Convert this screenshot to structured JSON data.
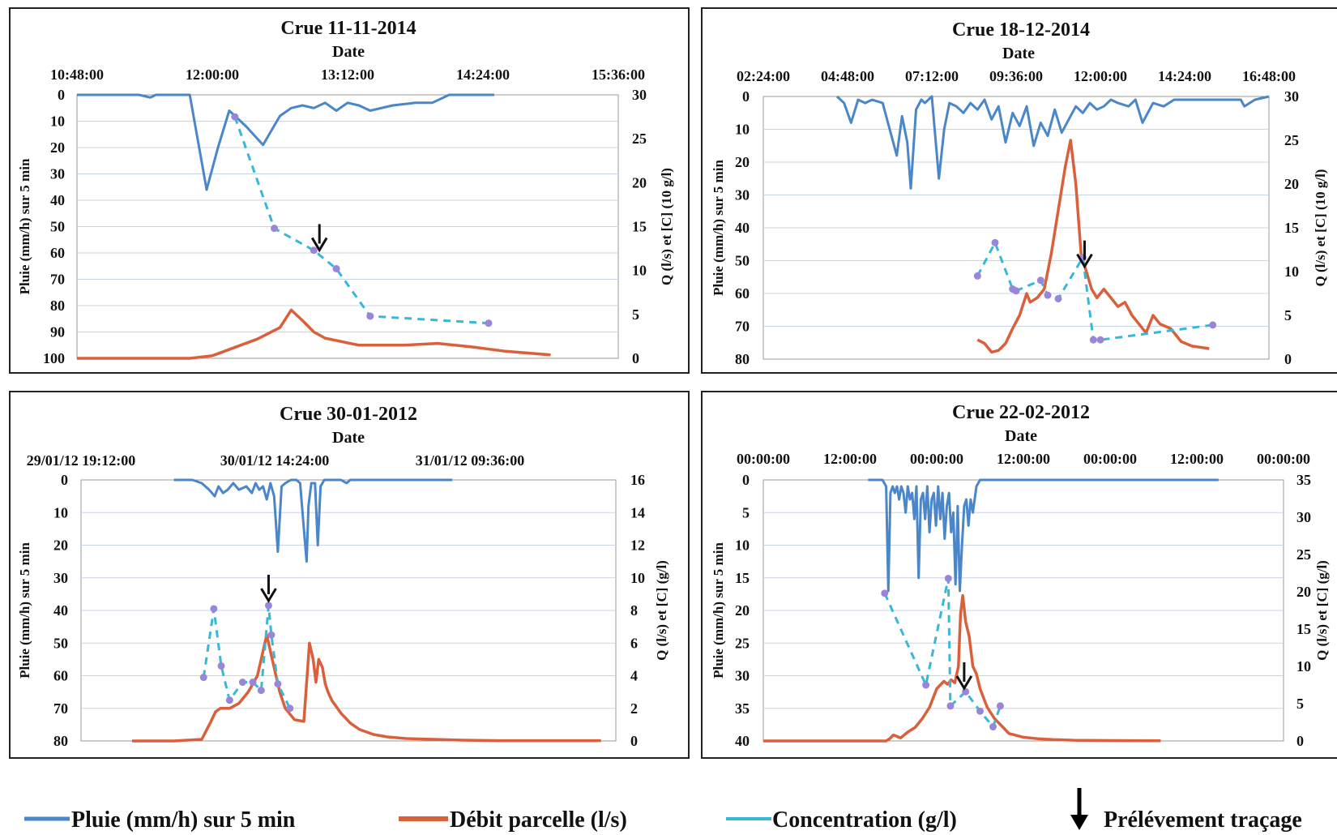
{
  "chart_data": [
    {
      "type": "line",
      "title": "Crue 11-11-2014",
      "xlabel": "Date",
      "ylabel_left": "Pluie (mm/h) sur 5 min",
      "ylabel_right": "Q (l/s) et [C] (10 g/l)",
      "x_ticks": [
        "10:48:00",
        "12:00:00",
        "13:12:00",
        "14:24:00",
        "15:36:00"
      ],
      "x_range_hours": [
        10.8,
        15.6
      ],
      "y_left_ticks": [
        "0",
        "10",
        "20",
        "30",
        "40",
        "50",
        "60",
        "70",
        "80",
        "90",
        "100"
      ],
      "y_left_range": [
        0,
        100
      ],
      "y_left_inverted": true,
      "y_right_ticks": [
        "0",
        "5",
        "10",
        "15",
        "20",
        "25",
        "30"
      ],
      "y_right_range": [
        0,
        30
      ],
      "series": [
        {
          "name": "Pluie (mm/h) sur 5 min",
          "axis": "left",
          "x": [
            10.8,
            11.35,
            11.45,
            11.5,
            11.55,
            11.8,
            11.95,
            12.05,
            12.15,
            12.3,
            12.45,
            12.6,
            12.7,
            12.8,
            12.9,
            13.0,
            13.1,
            13.2,
            13.3,
            13.4,
            13.6,
            13.8,
            13.95,
            14.1,
            14.5
          ],
          "y": [
            0,
            0,
            1,
            0,
            0,
            0,
            36,
            20,
            6,
            12,
            19,
            8,
            5,
            4,
            5,
            3,
            6,
            3,
            4,
            6,
            4,
            3,
            3,
            0,
            0
          ]
        },
        {
          "name": "Débit parcelle (l/s)",
          "axis": "right",
          "x": [
            10.8,
            11.4,
            11.8,
            12.0,
            12.4,
            12.6,
            12.7,
            12.8,
            12.9,
            13.0,
            13.3,
            13.7,
            14.0,
            14.3,
            14.6,
            15.0
          ],
          "y": [
            0,
            0,
            0,
            0.3,
            2.2,
            3.5,
            5.5,
            4.3,
            3.0,
            2.3,
            1.5,
            1.5,
            1.7,
            1.3,
            0.8,
            0.4
          ]
        },
        {
          "name": "Concentration (g/l)",
          "axis": "right",
          "x": [
            12.2,
            12.55,
            12.9,
            13.1,
            13.4,
            14.45
          ],
          "y": [
            27.5,
            14.8,
            12.3,
            10.2,
            4.8,
            4.0
          ]
        }
      ],
      "sampling_arrow_x": 12.95
    },
    {
      "type": "line",
      "title": "Crue 18-12-2014",
      "xlabel": "Date",
      "ylabel_left": "Pluie (mm/h) sur 5 min",
      "ylabel_right": "Q (l/s) et [C] (10 g/l)",
      "x_ticks": [
        "02:24:00",
        "04:48:00",
        "07:12:00",
        "09:36:00",
        "12:00:00",
        "14:24:00",
        "16:48:00"
      ],
      "x_range_hours": [
        2.4,
        16.8
      ],
      "y_left_ticks": [
        "0",
        "10",
        "20",
        "30",
        "40",
        "50",
        "60",
        "70",
        "80"
      ],
      "y_left_range": [
        0,
        80
      ],
      "y_left_inverted": true,
      "y_right_ticks": [
        "0",
        "5",
        "10",
        "15",
        "20",
        "25",
        "30"
      ],
      "y_right_range": [
        0,
        30
      ],
      "series": [
        {
          "name": "Pluie (mm/h) sur 5 min",
          "axis": "left",
          "x": [
            4.5,
            4.7,
            4.9,
            5.1,
            5.3,
            5.5,
            5.8,
            6.0,
            6.2,
            6.35,
            6.5,
            6.6,
            6.75,
            6.9,
            7.0,
            7.2,
            7.4,
            7.55,
            7.7,
            7.9,
            8.1,
            8.3,
            8.5,
            8.7,
            8.9,
            9.1,
            9.3,
            9.5,
            9.7,
            9.9,
            10.1,
            10.3,
            10.5,
            10.7,
            10.9,
            11.1,
            11.3,
            11.5,
            11.7,
            11.9,
            12.1,
            12.3,
            12.5,
            12.8,
            13.0,
            13.2,
            13.5,
            13.8,
            14.1,
            14.5,
            15.0,
            15.5,
            16.0,
            16.1,
            16.4,
            16.8
          ],
          "y": [
            0,
            2,
            8,
            1,
            2,
            1,
            2,
            10,
            18,
            6,
            14,
            28,
            4,
            1,
            2,
            0,
            25,
            10,
            2,
            3,
            5,
            2,
            4,
            1,
            7,
            3,
            14,
            5,
            9,
            3,
            15,
            8,
            12,
            4,
            11,
            7,
            3,
            5,
            2,
            4,
            3,
            1,
            2,
            3,
            1,
            8,
            2,
            3,
            1,
            1,
            1,
            1,
            1,
            3,
            1,
            0
          ]
        },
        {
          "name": "Débit parcelle (l/s)",
          "axis": "right",
          "x": [
            8.5,
            8.7,
            8.9,
            9.1,
            9.3,
            9.5,
            9.7,
            9.9,
            10.0,
            10.2,
            10.4,
            10.6,
            10.8,
            11.0,
            11.15,
            11.3,
            11.45,
            11.6,
            11.75,
            11.9,
            12.1,
            12.3,
            12.5,
            12.7,
            12.9,
            13.1,
            13.3,
            13.5,
            13.7,
            14.0,
            14.3,
            14.6,
            15.1
          ],
          "y": [
            2.2,
            1.8,
            0.8,
            1.0,
            1.8,
            3.5,
            5.0,
            7.5,
            6.5,
            7.0,
            8.0,
            12.0,
            17.0,
            22.0,
            25.0,
            20.0,
            12.0,
            10.0,
            8.0,
            7.0,
            8.0,
            7.0,
            6.0,
            6.5,
            5.0,
            4.0,
            3.0,
            5.0,
            4.0,
            3.5,
            2.0,
            1.5,
            1.2
          ]
        },
        {
          "name": "Concentration (g/l)",
          "axis": "right",
          "x": [
            8.5,
            9.0,
            9.5,
            9.6,
            10.3,
            10.5,
            10.8,
            11.5,
            11.8,
            12.0,
            15.2
          ],
          "y": [
            9.5,
            13.3,
            8.0,
            7.8,
            9.0,
            7.3,
            6.9,
            11.6,
            2.2,
            2.2,
            3.9
          ]
        }
      ],
      "sampling_arrow_x": 11.55
    },
    {
      "type": "line",
      "title": "Crue 30-01-2012",
      "xlabel": "Date",
      "ylabel_left": "Pluie (mm/h) sur 5 min",
      "ylabel_right": "Q (l/s) et [C] (g/l)",
      "x_ticks": [
        "29/01/12 19:12:00",
        "30/01/12 14:24:00",
        "31/01/12 09:36:00"
      ],
      "x_range_hours": [
        0,
        57.6
      ],
      "y_left_ticks": [
        "0",
        "10",
        "20",
        "30",
        "40",
        "50",
        "60",
        "70",
        "80"
      ],
      "y_left_range": [
        0,
        80
      ],
      "y_left_inverted": true,
      "y_right_ticks": [
        "0",
        "2",
        "4",
        "6",
        "8",
        "10",
        "12",
        "14",
        "16"
      ],
      "y_right_range": [
        0,
        16
      ],
      "series": [
        {
          "name": "Pluie (mm/h) sur 5 min",
          "axis": "left",
          "x": [
            10.0,
            12.0,
            13.0,
            13.8,
            14.4,
            14.8,
            15.3,
            15.8,
            16.4,
            17.0,
            17.8,
            18.4,
            18.8,
            19.2,
            19.6,
            20.0,
            20.4,
            20.8,
            21.2,
            21.6,
            22.0,
            22.6,
            23.2,
            23.6,
            24.0,
            24.3,
            24.5,
            24.8,
            25.2,
            25.5,
            25.8,
            26.2,
            28.0,
            28.6,
            29.0,
            31.0,
            40.0
          ],
          "y": [
            0,
            0,
            1,
            3,
            5,
            2,
            4,
            3,
            1,
            3,
            2,
            4,
            1,
            3,
            2,
            6,
            1,
            5,
            22,
            2,
            1,
            0,
            0,
            1,
            15,
            25,
            8,
            1,
            1,
            20,
            2,
            0,
            0,
            1,
            0,
            0,
            0
          ]
        },
        {
          "name": "Débit parcelle (l/s)",
          "axis": "right",
          "x": [
            5.5,
            10.0,
            13.0,
            14.0,
            14.5,
            15.0,
            16.0,
            17.0,
            18.0,
            19.0,
            20.0,
            20.6,
            21.0,
            21.4,
            22.0,
            23.0,
            24.0,
            24.6,
            25.0,
            25.3,
            25.6,
            26.0,
            26.3,
            26.6,
            27.0,
            28.0,
            29.0,
            30.0,
            31.5,
            33.0,
            35.0,
            38.0,
            41.0,
            45.0,
            50.0,
            56.0
          ],
          "y": [
            0,
            0,
            0.1,
            1.2,
            1.8,
            2.0,
            2.0,
            2.3,
            3.0,
            4.0,
            6.5,
            5.0,
            4.0,
            3.0,
            2.0,
            1.3,
            1.2,
            6.0,
            5.0,
            3.6,
            5.0,
            4.5,
            3.5,
            3.0,
            2.5,
            1.7,
            1.1,
            0.7,
            0.4,
            0.25,
            0.15,
            0.1,
            0.05,
            0.02,
            0.02,
            0.02
          ]
        },
        {
          "name": "Concentration (g/l)",
          "axis": "right",
          "x": [
            13.2,
            14.3,
            15.1,
            16.0,
            17.4,
            18.5,
            19.4,
            20.2,
            20.5,
            21.2,
            22.5
          ],
          "y": [
            3.9,
            8.1,
            4.6,
            2.5,
            3.6,
            3.6,
            3.1,
            8.3,
            6.5,
            3.5,
            2.0
          ]
        }
      ],
      "sampling_arrow_x": 20.2
    },
    {
      "type": "line",
      "title": "Crue 22-02-2012",
      "xlabel": "Date",
      "ylabel_left": "Pluie (mm/h) sur 5 min",
      "ylabel_right": "Q (l/s) et [C] (g/l)",
      "x_ticks": [
        "00:00:00",
        "12:00:00",
        "00:00:00",
        "12:00:00",
        "00:00:00",
        "12:00:00",
        "00:00:00"
      ],
      "x_range_hours": [
        0,
        72
      ],
      "y_left_ticks": [
        "0",
        "5",
        "10",
        "15",
        "20",
        "25",
        "30",
        "35",
        "40"
      ],
      "y_left_range": [
        0,
        40
      ],
      "y_left_inverted": true,
      "y_right_ticks": [
        "0",
        "5",
        "10",
        "15",
        "20",
        "25",
        "30",
        "35"
      ],
      "y_right_range": [
        0,
        35
      ],
      "series": [
        {
          "name": "Pluie (mm/h) sur 5 min",
          "axis": "left",
          "x": [
            14.5,
            16.5,
            17.0,
            17.3,
            17.6,
            17.9,
            18.2,
            18.5,
            18.8,
            19.1,
            19.4,
            19.7,
            20.0,
            20.3,
            20.6,
            20.9,
            21.2,
            21.5,
            21.8,
            22.1,
            22.4,
            22.7,
            23.0,
            23.3,
            23.6,
            23.9,
            24.2,
            24.5,
            24.8,
            25.1,
            25.4,
            25.7,
            26.0,
            26.3,
            26.6,
            26.9,
            27.2,
            27.5,
            27.8,
            28.1,
            28.4,
            28.7,
            29.0,
            29.5,
            30.0,
            31.5,
            40.0,
            51.0,
            58.0,
            63.0
          ],
          "y": [
            0,
            0,
            1,
            17,
            2,
            1,
            2,
            1,
            3,
            1,
            2,
            5,
            1,
            3,
            2,
            6,
            1,
            15,
            3,
            2,
            6,
            1,
            8,
            3,
            2,
            7,
            1,
            6,
            2,
            9,
            4,
            2,
            8,
            5,
            16,
            4,
            17,
            10,
            4,
            3,
            7,
            3,
            5,
            1,
            0,
            0,
            0,
            0,
            0,
            0
          ]
        },
        {
          "name": "Débit parcelle (l/s)",
          "axis": "right",
          "x": [
            0,
            17.0,
            17.5,
            18.0,
            19.0,
            20.0,
            21.0,
            22.0,
            23.0,
            24.0,
            25.0,
            25.5,
            26.0,
            26.5,
            27.0,
            27.3,
            27.6,
            28.0,
            28.5,
            29.0,
            29.5,
            30.0,
            31.0,
            32.0,
            33.0,
            34.0,
            36.0,
            38.0,
            40.0,
            43.0,
            48.0,
            55.0
          ],
          "y": [
            0,
            0,
            0.3,
            0.8,
            0.4,
            1.2,
            1.8,
            3.0,
            4.5,
            7.0,
            8.0,
            7.6,
            8.2,
            7.8,
            10.0,
            17.0,
            19.5,
            16.0,
            14.0,
            10.0,
            9.0,
            7.0,
            4.5,
            3.0,
            2.0,
            1.0,
            0.5,
            0.3,
            0.2,
            0.1,
            0.05,
            0.02
          ]
        },
        {
          "name": "Concentration (g/l)",
          "axis": "right",
          "x": [
            16.8,
            22.5,
            25.6,
            25.9,
            28.0,
            30.0,
            31.8,
            32.8
          ],
          "y": [
            19.8,
            7.5,
            21.8,
            4.7,
            6.6,
            4.0,
            1.9,
            4.7
          ]
        }
      ],
      "sampling_arrow_x": 27.8
    }
  ],
  "legend": {
    "rain": "Pluie (mm/h) sur 5 min",
    "flow": "Débit parcelle (l/s)",
    "conc": "Concentration (g/l)",
    "sampling": "Prélévement traçage"
  },
  "colors": {
    "rain": "#4a86c8",
    "flow": "#d9603b",
    "conc": "#38b8d8",
    "marker": "#9a86d8",
    "grid": "#c8d4e8"
  }
}
